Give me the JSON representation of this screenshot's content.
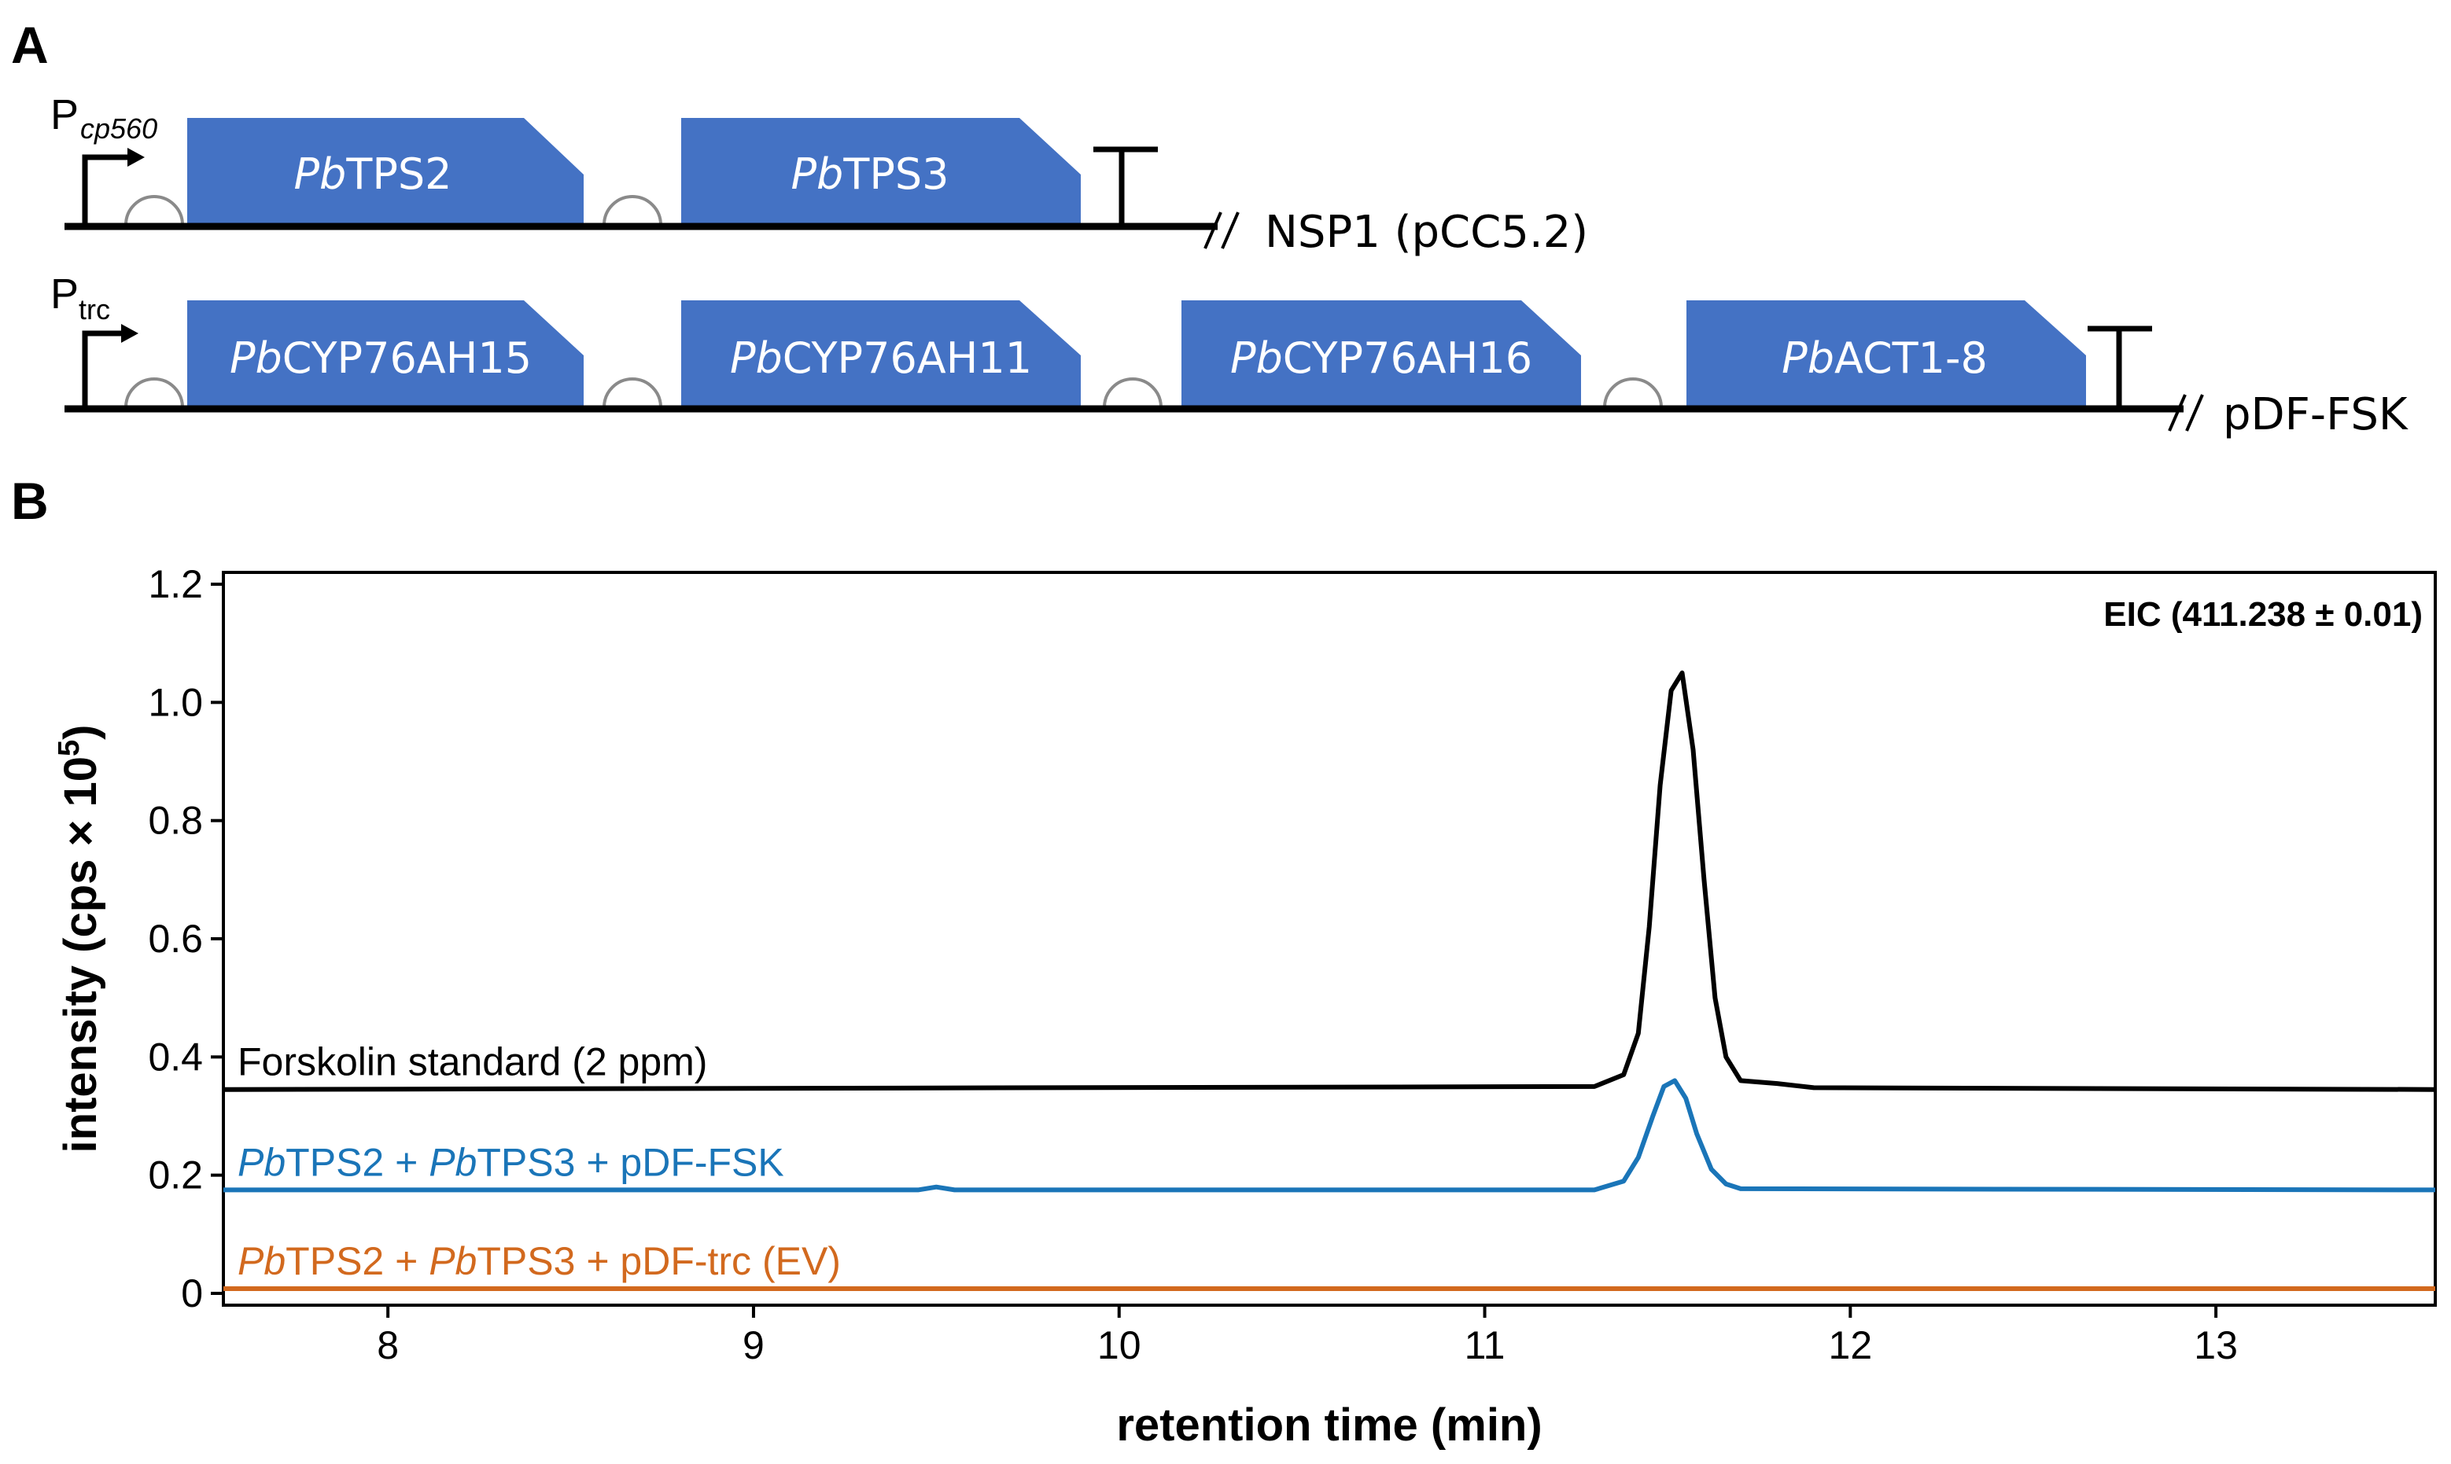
{
  "panels": {
    "a": "A",
    "b": "B"
  },
  "colors": {
    "gene_fill": "#4472C4",
    "black": "#000000",
    "blue": "#1A75B8",
    "orange": "#D2691E",
    "rbs": "#8a8a8a"
  },
  "construct1": {
    "promoter_main": "P",
    "promoter_sub": "cp560",
    "genes": [
      {
        "italic": "Pb",
        "rest": "TPS2"
      },
      {
        "italic": "Pb",
        "rest": "TPS3"
      }
    ],
    "plasmid": "NSP1 (pCC5.2)"
  },
  "construct2": {
    "promoter_main": "P",
    "promoter_sub": "trc",
    "genes": [
      {
        "italic": "Pb",
        "rest": "CYP76AH15"
      },
      {
        "italic": "Pb",
        "rest": "CYP76AH11"
      },
      {
        "italic": "Pb",
        "rest": "CYP76AH16"
      },
      {
        "italic": "Pb",
        "rest": "ACT1-8"
      }
    ],
    "plasmid": "pDF-FSK"
  },
  "chart_data": {
    "type": "line",
    "title": "",
    "annotation": "EIC (411.238 ± 0.01)",
    "xlabel": "retention time (min)",
    "ylabel_main": "intensity (cps × 10",
    "ylabel_sup": "5",
    "ylabel_close": ")",
    "xlim": [
      7.55,
      13.6
    ],
    "ylim": [
      -0.02,
      1.22
    ],
    "xticks": [
      8,
      9,
      10,
      11,
      12,
      13
    ],
    "xtick_labels": [
      "8",
      "9",
      "10",
      "11",
      "12",
      "13"
    ],
    "yticks": [
      0,
      0.2,
      0.4,
      0.6,
      0.8,
      1.0,
      1.2
    ],
    "ytick_labels": [
      "0",
      "0.2",
      "0.4",
      "0.6",
      "0.8",
      "1.0",
      "1.2"
    ],
    "grid": false,
    "series": [
      {
        "name": "Forskolin standard (2 ppm)",
        "color": "#000000",
        "label_parts": [
          {
            "t": "Forskolin standard (2 ppm)",
            "i": false
          }
        ],
        "x": [
          7.55,
          11.3,
          11.38,
          11.42,
          11.45,
          11.48,
          11.51,
          11.54,
          11.57,
          11.6,
          11.63,
          11.66,
          11.7,
          11.8,
          11.9,
          13.6
        ],
        "y": [
          0.345,
          0.35,
          0.37,
          0.44,
          0.62,
          0.86,
          1.02,
          1.05,
          0.92,
          0.7,
          0.5,
          0.4,
          0.36,
          0.355,
          0.348,
          0.345
        ]
      },
      {
        "name": "PbTPS2 + PbTPS3 + pDF-FSK",
        "color": "#1A75B8",
        "label_parts": [
          {
            "t": "Pb",
            "i": true
          },
          {
            "t": "TPS2 + ",
            "i": false
          },
          {
            "t": "Pb",
            "i": true
          },
          {
            "t": "TPS3 + pDF-FSK",
            "i": false
          }
        ],
        "x": [
          7.55,
          9.45,
          9.5,
          9.55,
          11.3,
          11.38,
          11.42,
          11.46,
          11.49,
          11.52,
          11.55,
          11.58,
          11.62,
          11.66,
          11.7,
          13.6
        ],
        "y": [
          0.175,
          0.175,
          0.18,
          0.175,
          0.175,
          0.19,
          0.23,
          0.3,
          0.35,
          0.36,
          0.33,
          0.27,
          0.21,
          0.185,
          0.177,
          0.175
        ]
      },
      {
        "name": "PbTPS2 + PbTPS3 + pDF-trc (EV)",
        "color": "#D2691E",
        "label_parts": [
          {
            "t": "Pb",
            "i": true
          },
          {
            "t": "TPS2 + ",
            "i": false
          },
          {
            "t": "Pb",
            "i": true
          },
          {
            "t": "TPS3 + pDF-trc (EV)",
            "i": false
          }
        ],
        "x": [
          7.55,
          13.6
        ],
        "y": [
          0.008,
          0.008
        ]
      }
    ]
  }
}
